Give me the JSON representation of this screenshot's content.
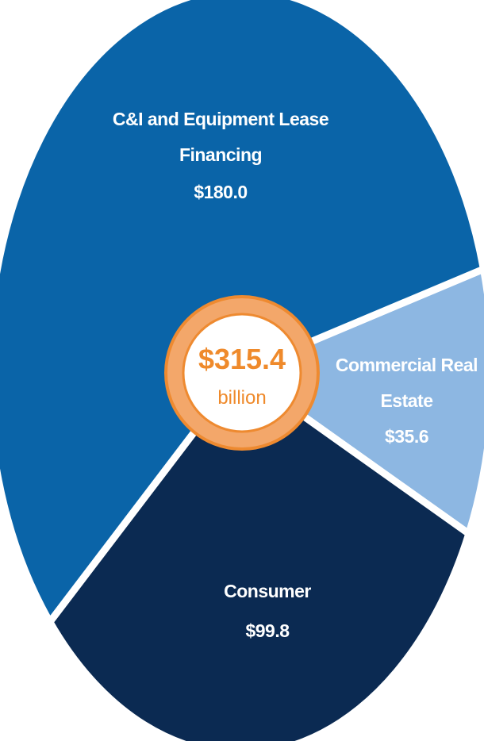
{
  "chart_data": {
    "type": "pie",
    "categories": [
      "C&I and Equipment Lease Financing",
      "Commercial Real Estate",
      "Consumer"
    ],
    "values": [
      180.0,
      35.6,
      99.8
    ],
    "value_labels": [
      "$180.0",
      "$35.6",
      "$99.8"
    ],
    "colors": [
      "#0a64a8",
      "#8db7e2",
      "#0b2a52"
    ],
    "center_label": "$315.4",
    "center_sublabel": "billion"
  }
}
